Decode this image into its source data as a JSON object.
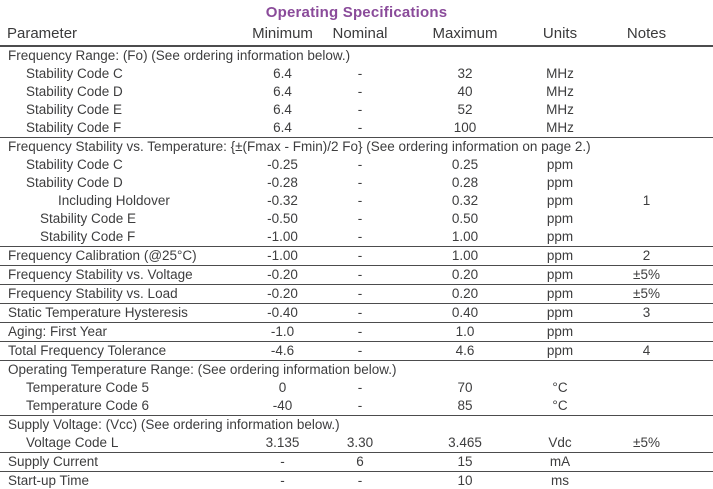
{
  "title": "Operating Specifications",
  "title_color": "#8a4b9a",
  "text_color": "#3d3d3e",
  "rule_color": "#4c4c4d",
  "columns": [
    "Parameter",
    "Minimum",
    "Nominal",
    "Maximum",
    "Units",
    "Notes"
  ],
  "rows": [
    {
      "type": "section",
      "label": "Frequency Range: (Fo) (See ordering information below.)"
    },
    {
      "type": "data",
      "indent": 1,
      "cells": [
        "Stability Code C",
        "6.4",
        "-",
        "32",
        "MHz",
        ""
      ]
    },
    {
      "type": "data",
      "indent": 1,
      "cells": [
        "Stability Code D",
        "6.4",
        "-",
        "40",
        "MHz",
        ""
      ]
    },
    {
      "type": "data",
      "indent": 1,
      "cells": [
        "Stability Code E",
        "6.4",
        "-",
        "52",
        "MHz",
        ""
      ]
    },
    {
      "type": "data",
      "indent": 1,
      "rule_below": true,
      "cells": [
        "Stability Code F",
        "6.4",
        "-",
        "100",
        "MHz",
        ""
      ]
    },
    {
      "type": "section",
      "label": "Frequency Stability vs. Temperature: {±(Fmax - Fmin)/2 Fo} (See ordering information on page 2.)"
    },
    {
      "type": "data",
      "indent": 1,
      "cells": [
        "Stability Code C",
        "-0.25",
        "-",
        "0.25",
        "ppm",
        ""
      ]
    },
    {
      "type": "data",
      "indent": 1,
      "cells": [
        "Stability Code D",
        "-0.28",
        "-",
        "0.28",
        "ppm",
        ""
      ]
    },
    {
      "type": "data",
      "indent": 3,
      "cells": [
        "Including Holdover",
        "-0.32",
        "-",
        "0.32",
        "ppm",
        "1"
      ]
    },
    {
      "type": "data",
      "indent": 2,
      "cells": [
        "Stability Code E",
        "-0.50",
        "-",
        "0.50",
        "ppm",
        ""
      ]
    },
    {
      "type": "data",
      "indent": 2,
      "rule_below": true,
      "cells": [
        "Stability Code F",
        "-1.00",
        "-",
        "1.00",
        "ppm",
        ""
      ]
    },
    {
      "type": "data",
      "indent": 0,
      "rule_below": true,
      "cells": [
        "Frequency Calibration (@25°C)",
        "-1.00",
        "-",
        "1.00",
        "ppm",
        "2"
      ]
    },
    {
      "type": "data",
      "indent": 0,
      "rule_below": true,
      "cells": [
        "Frequency Stability vs. Voltage",
        "-0.20",
        "-",
        "0.20",
        "ppm",
        "±5%"
      ]
    },
    {
      "type": "data",
      "indent": 0,
      "rule_below": true,
      "cells": [
        "Frequency Stability vs. Load",
        "-0.20",
        "-",
        "0.20",
        "ppm",
        "±5%"
      ]
    },
    {
      "type": "data",
      "indent": 0,
      "rule_below": true,
      "cells": [
        "Static Temperature Hysteresis",
        "-0.40",
        "-",
        "0.40",
        "ppm",
        "3"
      ]
    },
    {
      "type": "data",
      "indent": 0,
      "rule_below": true,
      "cells": [
        "Aging: First Year",
        "-1.0",
        "-",
        "1.0",
        "ppm",
        ""
      ]
    },
    {
      "type": "data",
      "indent": 0,
      "rule_below": true,
      "cells": [
        "Total Frequency Tolerance",
        "-4.6",
        "-",
        "4.6",
        "ppm",
        "4"
      ]
    },
    {
      "type": "section",
      "label": "Operating Temperature Range: (See ordering information below.)"
    },
    {
      "type": "data",
      "indent": 1,
      "cells": [
        "Temperature Code 5",
        "0",
        "-",
        "70",
        "°C",
        ""
      ]
    },
    {
      "type": "data",
      "indent": 1,
      "rule_below": true,
      "cells": [
        "Temperature Code 6",
        "-40",
        "-",
        "85",
        "°C",
        ""
      ]
    },
    {
      "type": "section",
      "label": "Supply Voltage: (Vcc) (See ordering information below.)"
    },
    {
      "type": "data",
      "indent": 1,
      "rule_below": true,
      "cells": [
        "Voltage Code L",
        "3.135",
        "3.30",
        "3.465",
        "Vdc",
        "±5%"
      ]
    },
    {
      "type": "data",
      "indent": 0,
      "rule_below": true,
      "cells": [
        "Supply Current",
        "-",
        "6",
        "15",
        "mA",
        ""
      ]
    },
    {
      "type": "data",
      "indent": 0,
      "rule_below": true,
      "cells": [
        "Start-up Time",
        "-",
        "-",
        "10",
        "ms",
        ""
      ]
    }
  ]
}
